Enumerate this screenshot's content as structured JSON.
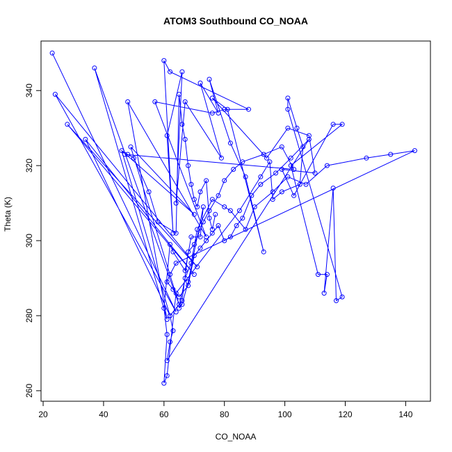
{
  "chart_data": {
    "type": "line",
    "title": "ATOM3 Southbound CO_NOAA",
    "xlabel": "CO_NOAA",
    "ylabel": "Theta (K)",
    "xlim": [
      19.3,
      148.2
    ],
    "ylim": [
      257.2,
      353.2
    ],
    "xticks": [
      20,
      40,
      60,
      80,
      100,
      120,
      140
    ],
    "yticks": [
      260,
      280,
      300,
      320,
      340
    ],
    "grid": false,
    "legend": "none",
    "markers": "open-circle",
    "colors": {
      "series": "#0000ff",
      "axes": "#000000"
    },
    "points": [
      [
        23,
        350
      ],
      [
        64,
        281
      ],
      [
        24,
        339
      ],
      [
        71,
        293
      ],
      [
        28,
        331
      ],
      [
        70,
        291
      ],
      [
        34,
        327
      ],
      [
        62,
        280
      ],
      [
        46,
        324
      ],
      [
        70,
        307
      ],
      [
        49,
        325
      ],
      [
        65,
        283
      ],
      [
        37,
        346
      ],
      [
        61,
        279
      ],
      [
        48,
        337
      ],
      [
        74,
        301
      ],
      [
        57,
        337
      ],
      [
        76,
        334
      ],
      [
        80,
        335
      ],
      [
        88,
        335
      ],
      [
        62,
        345
      ],
      [
        60,
        348
      ],
      [
        63,
        302
      ],
      [
        61,
        328
      ],
      [
        66,
        345
      ],
      [
        64,
        310
      ],
      [
        67,
        337
      ],
      [
        79,
        322
      ],
      [
        72,
        342
      ],
      [
        78,
        334
      ],
      [
        75,
        343
      ],
      [
        82,
        326
      ],
      [
        87,
        317
      ],
      [
        93,
        297
      ],
      [
        81,
        335
      ],
      [
        76,
        338
      ],
      [
        94,
        322
      ],
      [
        101,
        330
      ],
      [
        108,
        328
      ],
      [
        110,
        318
      ],
      [
        99,
        319
      ],
      [
        103,
        312
      ],
      [
        116,
        331
      ],
      [
        119,
        331
      ],
      [
        102,
        320
      ],
      [
        111,
        291
      ],
      [
        114,
        291
      ],
      [
        113,
        286
      ],
      [
        116,
        314
      ],
      [
        117,
        284
      ],
      [
        119,
        285
      ],
      [
        101,
        335
      ],
      [
        101,
        338
      ],
      [
        104,
        330
      ],
      [
        106,
        325
      ],
      [
        105,
        315
      ],
      [
        99,
        313
      ],
      [
        96,
        311
      ],
      [
        95,
        321
      ],
      [
        92,
        317
      ],
      [
        85,
        308
      ],
      [
        64,
        286
      ],
      [
        61,
        264
      ],
      [
        60,
        262
      ],
      [
        61,
        275
      ],
      [
        60,
        282
      ],
      [
        62,
        299
      ],
      [
        63,
        297
      ],
      [
        67,
        292
      ],
      [
        69,
        301
      ],
      [
        72,
        301
      ],
      [
        73,
        309
      ],
      [
        68,
        289
      ],
      [
        66,
        283
      ],
      [
        65,
        282
      ],
      [
        67,
        290
      ],
      [
        69,
        294
      ],
      [
        71,
        303
      ],
      [
        76,
        311
      ],
      [
        80,
        309
      ],
      [
        82,
        308
      ],
      [
        87,
        303
      ],
      [
        90,
        309
      ],
      [
        96,
        313
      ],
      [
        101,
        317
      ],
      [
        107,
        315
      ],
      [
        114,
        320
      ],
      [
        127,
        322
      ],
      [
        135,
        323
      ],
      [
        143,
        324
      ],
      [
        64,
        294
      ],
      [
        62,
        291
      ],
      [
        61,
        289
      ],
      [
        63,
        287
      ],
      [
        65,
        285
      ],
      [
        68,
        288
      ],
      [
        70,
        296
      ],
      [
        72,
        298
      ],
      [
        74,
        300
      ],
      [
        76,
        302
      ],
      [
        78,
        304
      ],
      [
        80,
        300
      ],
      [
        82,
        301
      ],
      [
        84,
        304
      ],
      [
        86,
        306
      ],
      [
        89,
        312
      ],
      [
        92,
        315
      ],
      [
        97,
        318
      ],
      [
        102,
        322
      ],
      [
        108,
        327
      ],
      [
        61,
        268
      ],
      [
        62,
        273
      ],
      [
        63,
        276
      ],
      [
        62,
        280
      ],
      [
        66,
        284
      ],
      [
        68,
        297
      ],
      [
        70,
        299
      ],
      [
        73,
        305
      ],
      [
        75,
        308
      ],
      [
        78,
        312
      ],
      [
        80,
        316
      ],
      [
        83,
        319
      ],
      [
        86,
        321
      ],
      [
        93,
        323
      ],
      [
        99,
        325
      ],
      [
        103,
        319
      ],
      [
        47,
        323
      ],
      [
        48,
        323
      ],
      [
        50,
        322
      ],
      [
        55,
        313
      ],
      [
        58,
        305
      ],
      [
        64,
        302
      ],
      [
        65,
        339
      ],
      [
        66,
        331
      ],
      [
        67,
        327
      ],
      [
        68,
        320
      ],
      [
        69,
        315
      ],
      [
        70,
        311
      ],
      [
        71,
        309
      ],
      [
        72,
        313
      ],
      [
        74,
        316
      ],
      [
        75,
        306
      ],
      [
        76,
        303
      ],
      [
        77,
        307
      ]
    ]
  }
}
